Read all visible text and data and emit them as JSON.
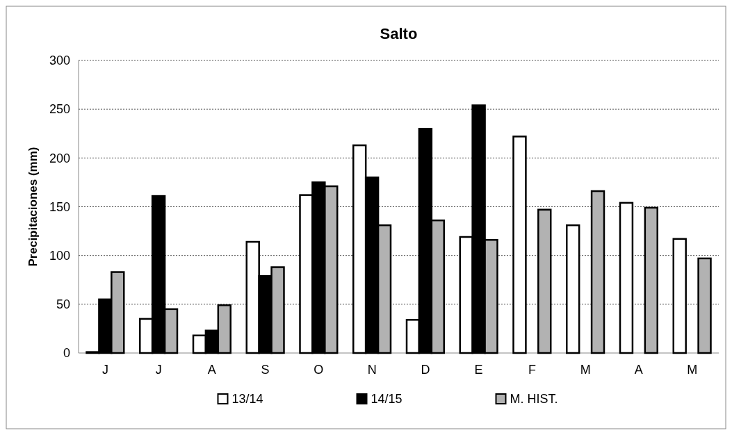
{
  "chart_data": {
    "type": "bar",
    "title": "Salto",
    "ylabel": "Precipitaciones (mm)",
    "categories": [
      "J",
      "J",
      "A",
      "S",
      "O",
      "N",
      "D",
      "E",
      "F",
      "M",
      "A",
      "M"
    ],
    "series": [
      {
        "name": "13/14",
        "color": "#ffffff",
        "values": [
          1,
          35,
          18,
          114,
          162,
          213,
          34,
          119,
          222,
          131,
          154,
          117
        ]
      },
      {
        "name": "14/15",
        "color": "#000000",
        "values": [
          55,
          161,
          23,
          79,
          175,
          180,
          230,
          254,
          null,
          null,
          null,
          null
        ]
      },
      {
        "name": "M. HIST.",
        "color": "#b2b2b2",
        "values": [
          83,
          45,
          49,
          88,
          171,
          131,
          136,
          116,
          147,
          166,
          149,
          97
        ]
      }
    ],
    "ylim": [
      0,
      300
    ],
    "yticks": [
      0,
      50,
      100,
      150,
      200,
      250,
      300
    ],
    "grid": "y",
    "legend": "bottom"
  }
}
